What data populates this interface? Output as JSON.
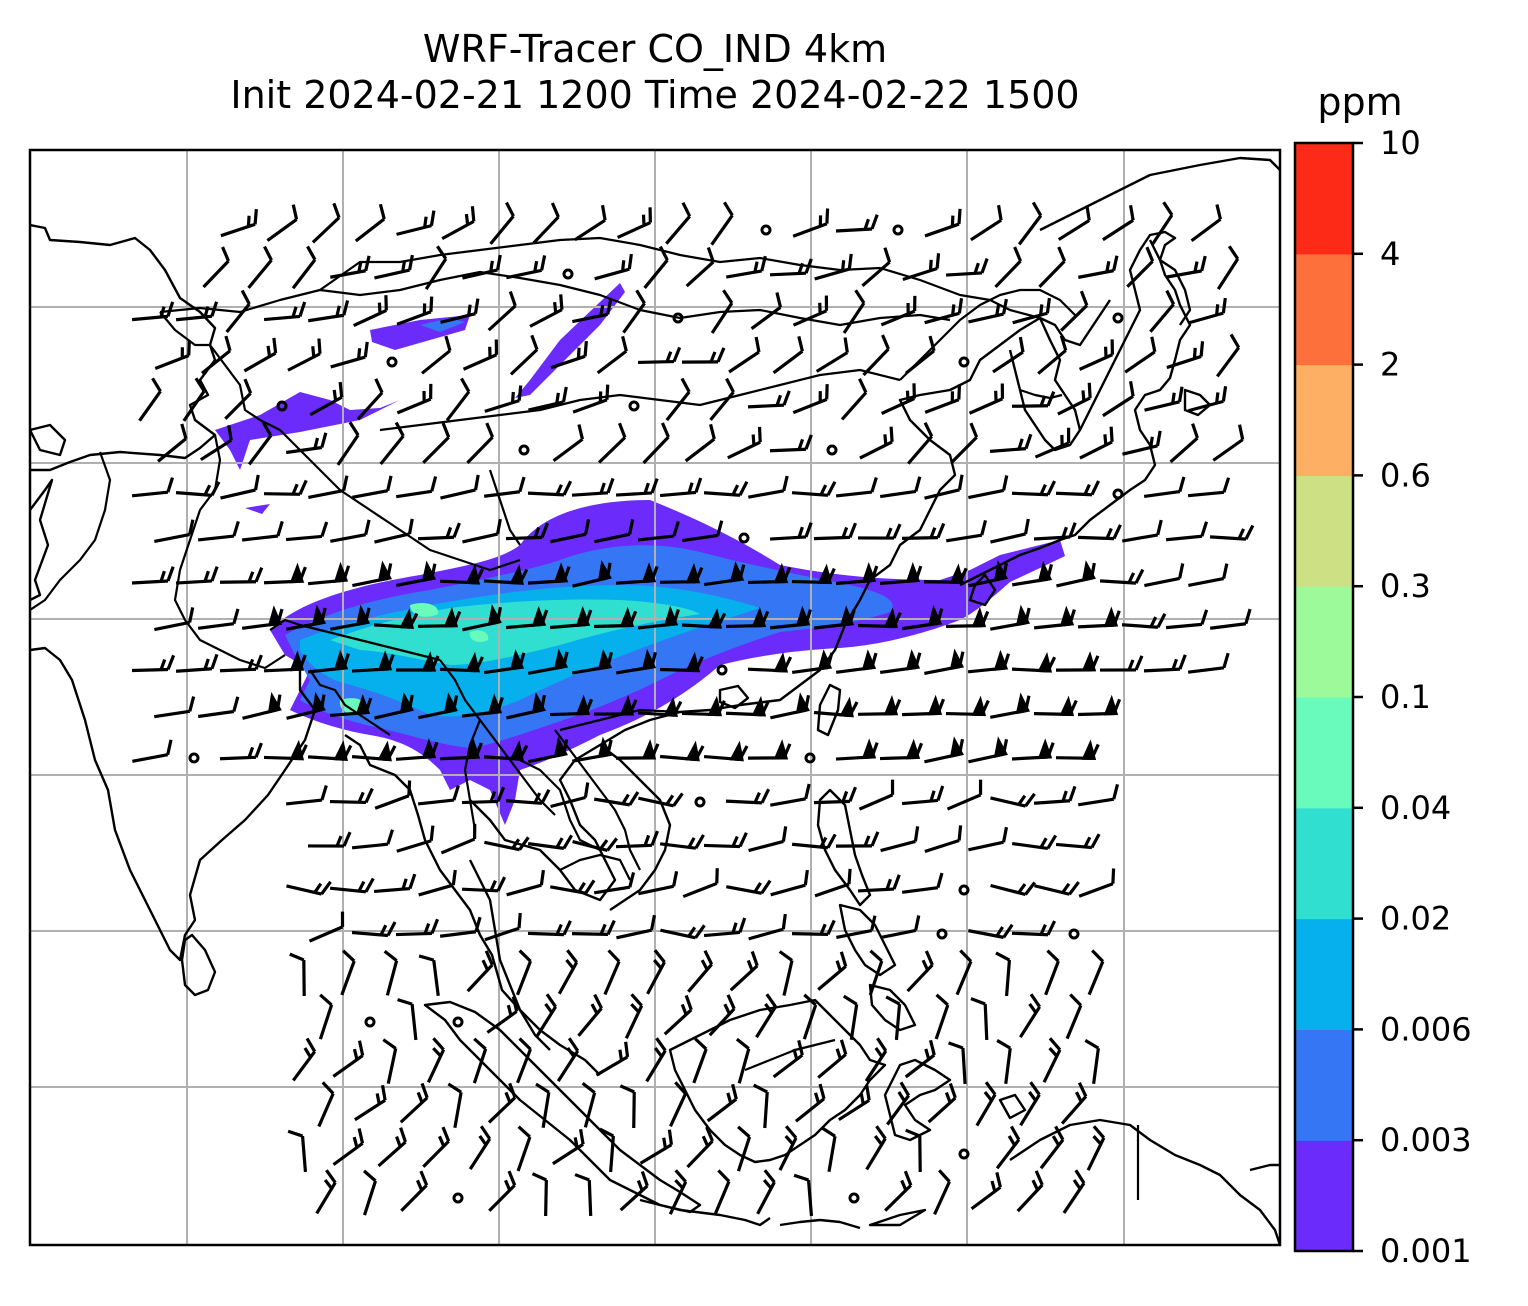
{
  "title": {
    "line1": "WRF-Tracer CO_IND 4km",
    "line2": "Init 2024-02-21 1200 Time 2024-02-22 1500"
  },
  "colorbar": {
    "unit": "ppm",
    "levels": [
      "0.001",
      "0.003",
      "0.006",
      "0.02",
      "0.04",
      "0.1",
      "0.3",
      "0.6",
      "2",
      "4",
      "10"
    ],
    "colors": [
      "#6a2bfb",
      "#3576f5",
      "#05b0ed",
      "#31dfd0",
      "#68fbbc",
      "#9dfa9a",
      "#cde184",
      "#fdb063",
      "#fd703b",
      "#fc2a17"
    ]
  },
  "map": {
    "coastline_color": "#000000",
    "gridline_color": "#b0b0b0",
    "barb_color": "#000000"
  }
}
